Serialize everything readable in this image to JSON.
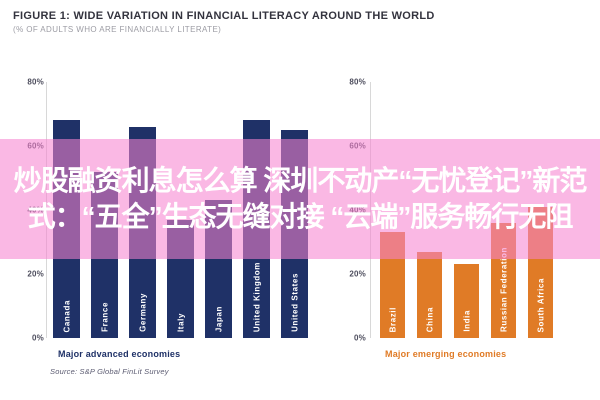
{
  "header": {
    "title": "FIGURE 1: WIDE VARIATION IN FINANCIAL LITERACY AROUND THE WORLD",
    "subtitle": "(% OF ADULTS WHO ARE FINANCIALLY LITERATE)"
  },
  "overlay": {
    "line1": "炒股融资利息怎么算 深圳不动产“无忧登记”新范",
    "line2": "式：“五全”生态无缝对接 “云端”服务畅行无阻"
  },
  "source": "Source: S&P Global FinLit Survey",
  "colors": {
    "advanced_bar": "#1f3167",
    "emerging_bar": "#e07b26",
    "overlay_pink": "rgba(246,130,208,0.57)",
    "overlay_text": "#ffffff",
    "title_text": "#33333e",
    "subtitle_text": "#9c9ca4",
    "tick_text": "#4e4e5e",
    "source_text": "#5c5c72"
  },
  "chart_data": [
    {
      "type": "bar",
      "title": "Major advanced economies",
      "categories": [
        "Canada",
        "France",
        "Germany",
        "Italy",
        "Japan",
        "United Kingdom",
        "United States"
      ],
      "values": [
        68,
        52,
        66,
        37,
        43,
        68,
        65
      ],
      "bar_color": "#1f3167",
      "label_color": "#ffffff",
      "y_ticks": [
        "80%",
        "60%",
        "40%",
        "20%",
        "0%"
      ],
      "y_tick_values": [
        80,
        60,
        40,
        20,
        0
      ],
      "ylim": [
        0,
        80
      ],
      "grid": false,
      "legend": "none"
    },
    {
      "type": "bar",
      "title": "Major emerging economies",
      "categories": [
        "Brazil",
        "China",
        "India",
        "Russian Federation",
        "South Africa"
      ],
      "values": [
        33,
        27,
        23,
        36,
        41
      ],
      "bar_color": "#e07b26",
      "label_color": "#ffffff",
      "y_ticks": [
        "80%",
        "60%",
        "40%",
        "20%",
        "0%"
      ],
      "y_tick_values": [
        80,
        60,
        40,
        20,
        0
      ],
      "ylim": [
        0,
        80
      ],
      "grid": false,
      "legend": "none"
    }
  ]
}
